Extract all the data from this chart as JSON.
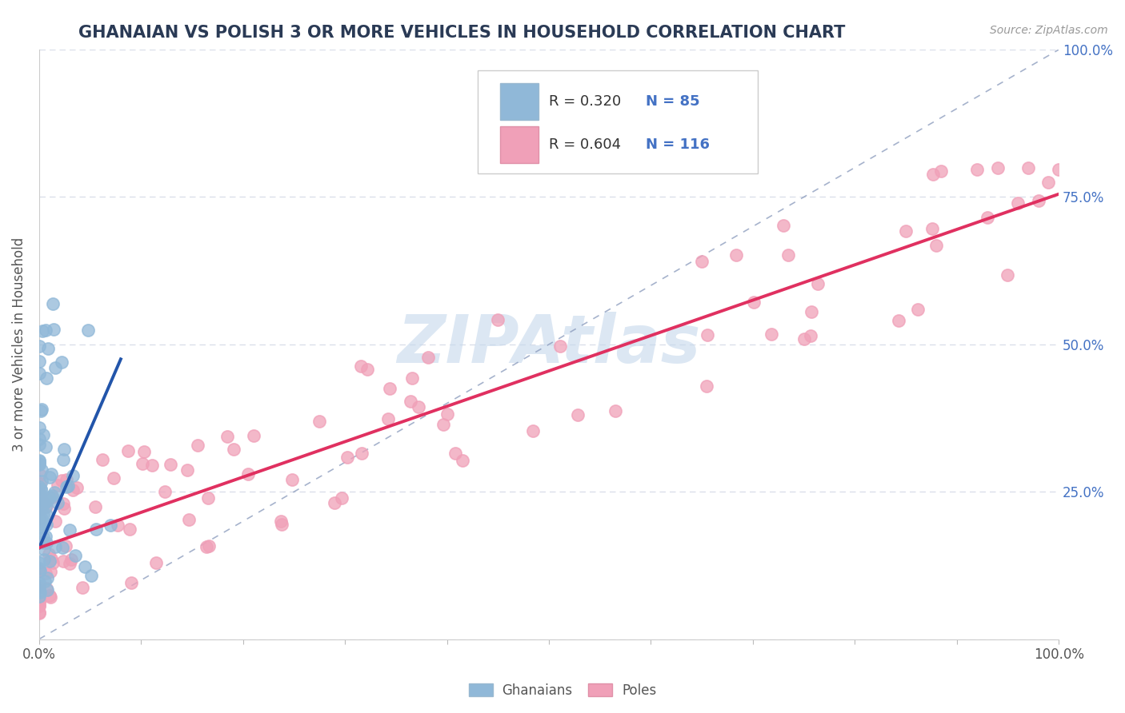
{
  "title": "GHANAIAN VS POLISH 3 OR MORE VEHICLES IN HOUSEHOLD CORRELATION CHART",
  "source_text": "Source: ZipAtlas.com",
  "ylabel": "3 or more Vehicles in Household",
  "ghanaian_color": "#90b8d8",
  "polish_color": "#f0a0b8",
  "ghanaian_line_color": "#2255aa",
  "polish_line_color": "#e03060",
  "diagonal_color": "#8899bb",
  "background_color": "#ffffff",
  "watermark_color": "#c5d8ec",
  "watermark_text": "ZIPAtlas",
  "xlim": [
    0,
    1
  ],
  "ylim": [
    0,
    1
  ],
  "right_ytick_color": "#4472c4",
  "grid_color": "#d8dde8",
  "title_color": "#2a3a55",
  "source_color": "#999999",
  "label_color": "#555555",
  "legend_r_color": "#333333",
  "legend_n_color": "#4472c4"
}
